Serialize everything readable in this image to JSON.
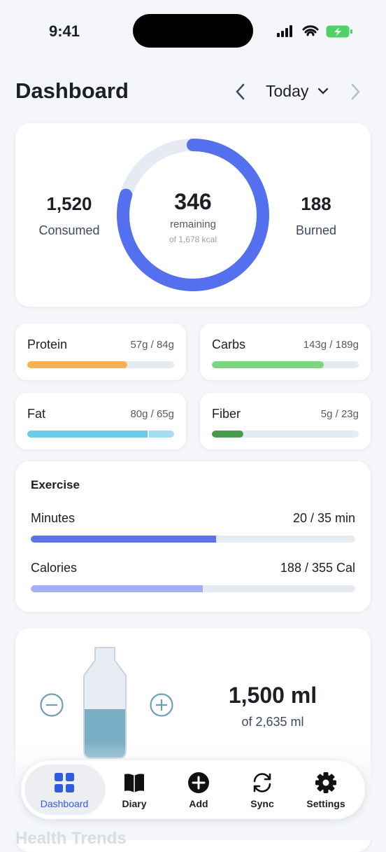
{
  "status_bar": {
    "time": "9:41"
  },
  "header": {
    "title": "Dashboard",
    "date_label": "Today"
  },
  "calories": {
    "consumed_value": "1,520",
    "consumed_label": "Consumed",
    "remaining_value": "346",
    "remaining_label": "remaining",
    "goal_text": "of 1,678 kcal",
    "burned_value": "188",
    "burned_label": "Burned"
  },
  "macros": [
    {
      "name": "Protein",
      "amount": "57g / 84g"
    },
    {
      "name": "Carbs",
      "amount": "143g / 189g"
    },
    {
      "name": "Fat",
      "amount": "80g / 65g"
    },
    {
      "name": "Fiber",
      "amount": "5g / 23g"
    }
  ],
  "exercise": {
    "title": "Exercise",
    "rows": [
      {
        "label": "Minutes",
        "value": "20 / 35 min"
      },
      {
        "label": "Calories",
        "value": "188 / 355 Cal"
      }
    ]
  },
  "water": {
    "amount": "1,500 ml",
    "goal_text": "of 2,635 ml"
  },
  "nav": [
    {
      "label": "Dashboard"
    },
    {
      "label": "Diary"
    },
    {
      "label": "Add"
    },
    {
      "label": "Sync"
    },
    {
      "label": "Settings"
    }
  ],
  "next_section": {
    "title": "Health Trends"
  }
}
